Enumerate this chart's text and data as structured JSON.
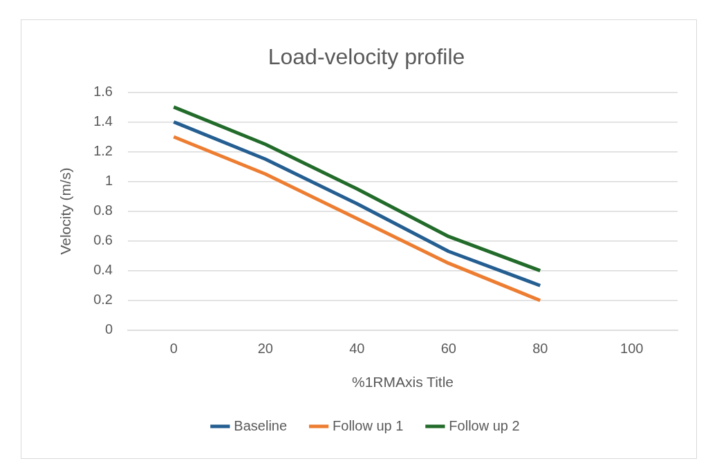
{
  "chart_data": {
    "type": "line",
    "title": "Load-velocity profile",
    "xlabel": "%1RMAxis Title",
    "ylabel": "Velocity (m/s)",
    "categories": [
      "0",
      "20",
      "40",
      "60",
      "80",
      "100"
    ],
    "series": [
      {
        "name": "Baseline",
        "color": "#255e91",
        "values": [
          1.4,
          1.15,
          0.85,
          0.53,
          0.3,
          null
        ]
      },
      {
        "name": "Follow up 1",
        "color": "#ed7d31",
        "values": [
          1.3,
          1.05,
          0.75,
          0.45,
          0.2,
          null
        ]
      },
      {
        "name": "Follow up 2",
        "color": "#226b2a",
        "values": [
          1.5,
          1.25,
          0.95,
          0.63,
          0.4,
          null
        ]
      }
    ],
    "ylim": [
      0,
      1.6
    ],
    "yticks": [
      0,
      0.2,
      0.4,
      0.6,
      0.8,
      1,
      1.2,
      1.4,
      1.6
    ],
    "grid": "y",
    "legend": "bottom",
    "marker": "none",
    "line_style": "solid"
  }
}
